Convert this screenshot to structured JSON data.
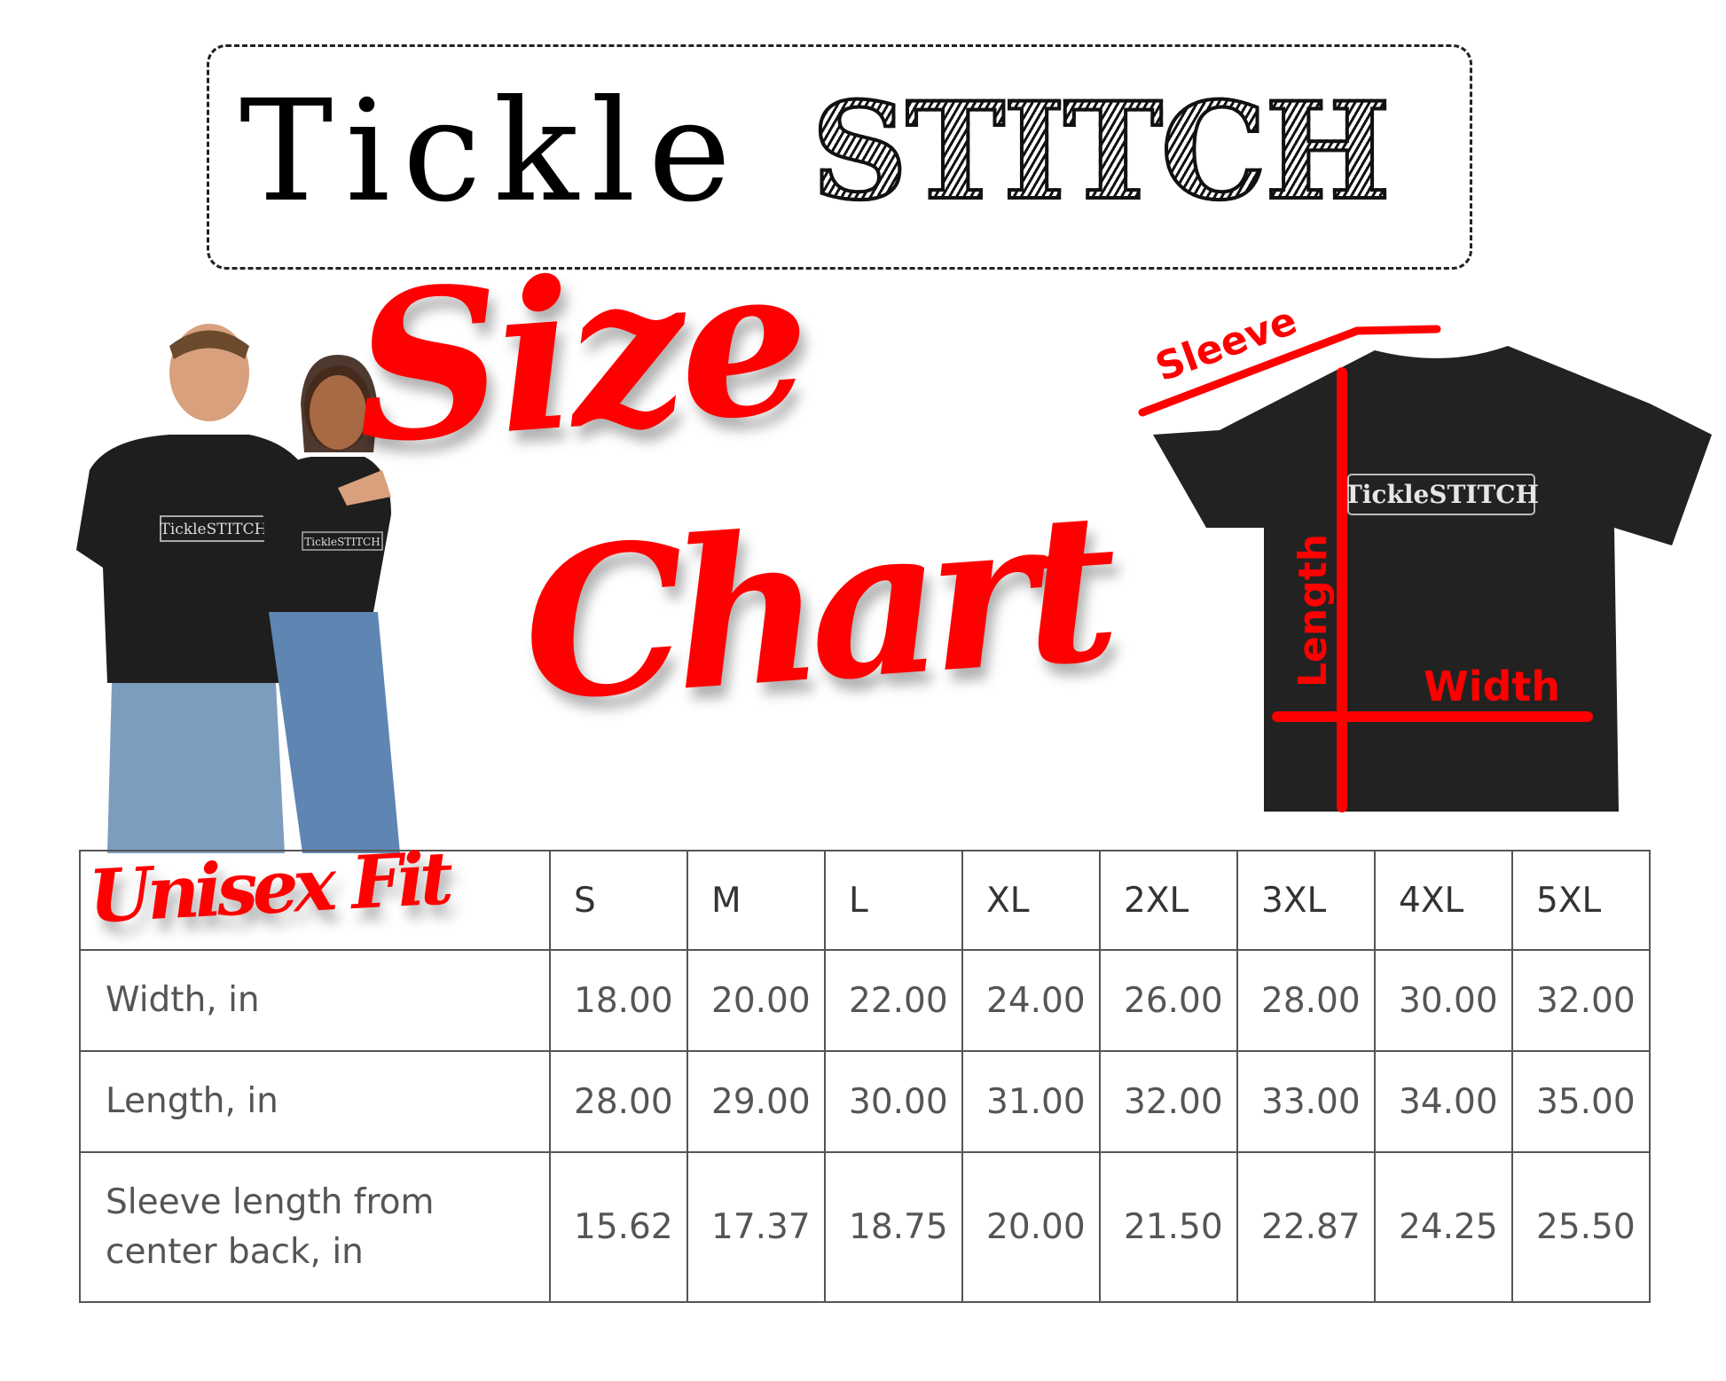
{
  "logo": {
    "part1": "Tickle",
    "part2": "STITCH"
  },
  "title": {
    "line1": "Size",
    "line2": "Chart"
  },
  "diagram": {
    "sleeve": "Sleeve",
    "length": "Length",
    "width": "Width",
    "shirt_logo": "TickleSTITCH"
  },
  "fit_label": "Unisex Fit",
  "colors": {
    "accent": "#ff0000",
    "shirt": "#222222"
  },
  "table": {
    "sizes": [
      "S",
      "M",
      "L",
      "XL",
      "2XL",
      "3XL",
      "4XL",
      "5XL"
    ],
    "rows": [
      {
        "label": "Width, in",
        "values": [
          "18.00",
          "20.00",
          "22.00",
          "24.00",
          "26.00",
          "28.00",
          "30.00",
          "32.00"
        ]
      },
      {
        "label": "Length, in",
        "values": [
          "28.00",
          "29.00",
          "30.00",
          "31.00",
          "32.00",
          "33.00",
          "34.00",
          "35.00"
        ]
      },
      {
        "label": "Sleeve length from center back, in",
        "values": [
          "15.62",
          "17.37",
          "18.75",
          "20.00",
          "21.50",
          "22.87",
          "24.25",
          "25.50"
        ]
      }
    ]
  }
}
